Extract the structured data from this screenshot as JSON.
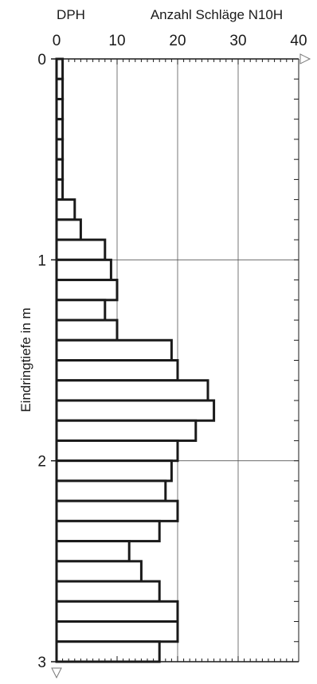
{
  "chart_data": {
    "type": "bar",
    "orientation": "horizontal",
    "title_left": "DPH",
    "title_right": "Anzahl Schläge N10H",
    "ylabel": "Eindringtiefe in m",
    "xlim": [
      0,
      40
    ],
    "ylim": [
      0,
      3
    ],
    "x_ticks": [
      "0",
      "10",
      "20",
      "30",
      "40"
    ],
    "y_ticks": [
      "0",
      "1",
      "2",
      "3"
    ],
    "bin_size_m": 0.1,
    "depth_top_m": [
      0.0,
      0.1,
      0.2,
      0.3,
      0.4,
      0.5,
      0.6,
      0.7,
      0.8,
      0.9,
      1.0,
      1.1,
      1.2,
      1.3,
      1.4,
      1.5,
      1.6,
      1.7,
      1.8,
      1.9,
      2.0,
      2.1,
      2.2,
      2.3,
      2.4,
      2.5,
      2.6,
      2.7,
      2.8,
      2.9
    ],
    "values": [
      1,
      1,
      1,
      1,
      1,
      1,
      1,
      3,
      4,
      8,
      9,
      10,
      8,
      10,
      19,
      20,
      25,
      26,
      23,
      20,
      19,
      18,
      20,
      17,
      12,
      14,
      17,
      20,
      20,
      17
    ],
    "grid": true
  }
}
